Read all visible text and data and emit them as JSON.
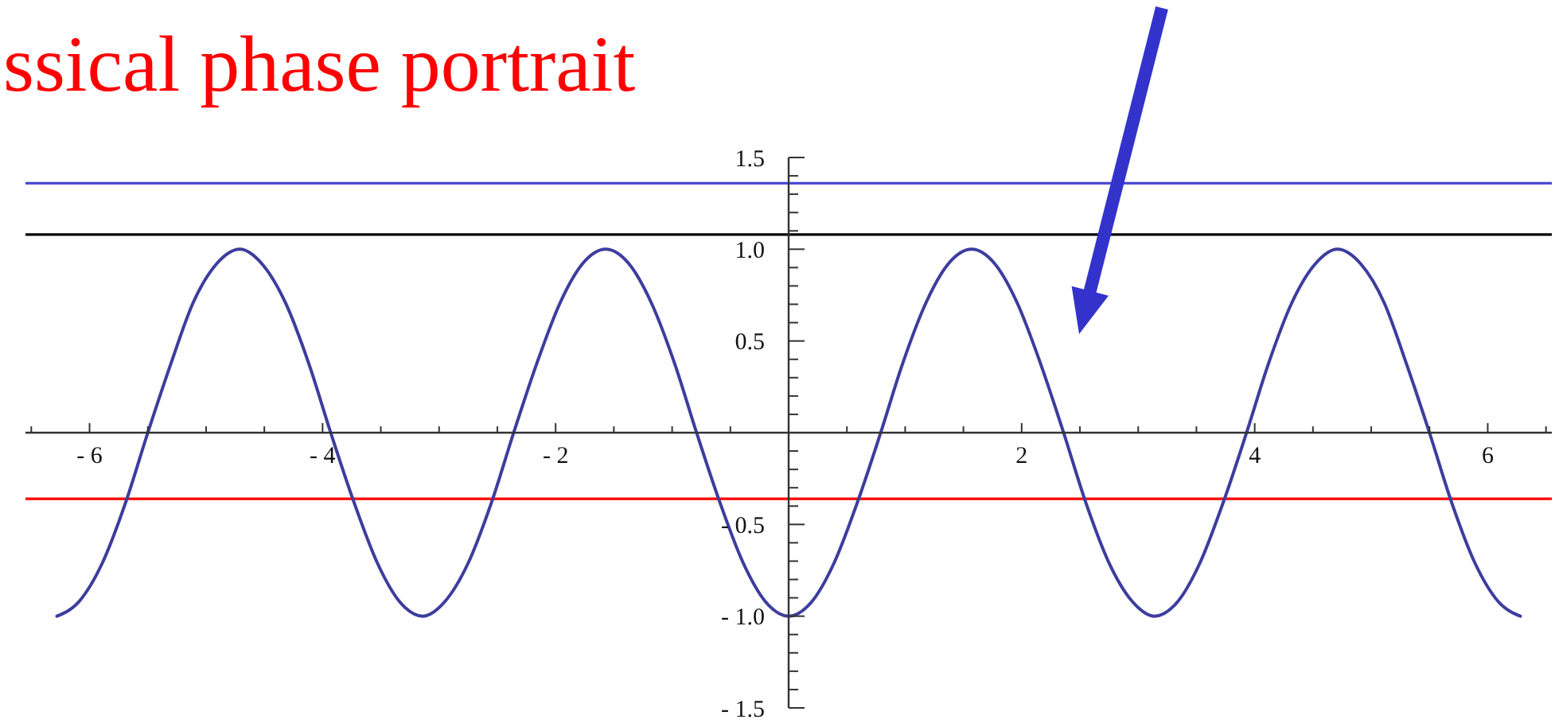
{
  "chart_data": {
    "type": "line",
    "title": "ssical phase portrait",
    "x": [
      -6.28,
      -6.09,
      -5.89,
      -5.69,
      -5.5,
      -5.3,
      -5.11,
      -4.91,
      -4.71,
      -4.52,
      -4.32,
      -4.12,
      -3.93,
      -3.73,
      -3.53,
      -3.34,
      -3.14,
      -2.95,
      -2.75,
      -2.55,
      -2.36,
      -2.16,
      -1.96,
      -1.77,
      -1.57,
      -1.37,
      -1.18,
      -0.98,
      -0.79,
      -0.59,
      -0.39,
      -0.2,
      0,
      0.2,
      0.39,
      0.59,
      0.79,
      0.98,
      1.18,
      1.37,
      1.57,
      1.77,
      1.96,
      2.16,
      2.36,
      2.55,
      2.75,
      2.95,
      3.14,
      3.34,
      3.53,
      3.73,
      3.93,
      4.12,
      4.32,
      4.52,
      4.71,
      4.91,
      5.11,
      5.3,
      5.5,
      5.69,
      5.89,
      6.09,
      6.28
    ],
    "series": [
      {
        "color": "#3d3d9e",
        "values": [
          -1,
          -0.92,
          -0.71,
          -0.38,
          0,
          0.38,
          0.71,
          0.92,
          1,
          0.92,
          0.71,
          0.38,
          0,
          -0.38,
          -0.71,
          -0.92,
          -1,
          -0.92,
          -0.71,
          -0.38,
          0,
          0.38,
          0.71,
          0.92,
          1,
          0.92,
          0.71,
          0.38,
          0,
          -0.38,
          -0.71,
          -0.92,
          -1,
          -0.92,
          -0.71,
          -0.38,
          0,
          0.38,
          0.71,
          0.92,
          1,
          0.92,
          0.71,
          0.38,
          0,
          -0.38,
          -0.71,
          -0.92,
          -1,
          -0.92,
          -0.71,
          -0.38,
          0,
          0.38,
          0.71,
          0.92,
          1,
          0.92,
          0.71,
          0.38,
          0,
          -0.38,
          -0.71,
          -0.92,
          -1
        ]
      }
    ],
    "xlim": [
      -6.55,
      6.55
    ],
    "ylim": [
      -1.5,
      1.5
    ],
    "xticks": [
      {
        "value": -6.5,
        "label": null
      },
      {
        "value": -6,
        "label": "- 6"
      },
      {
        "value": -5.5,
        "label": null
      },
      {
        "value": -5,
        "label": null
      },
      {
        "value": -4.5,
        "label": null
      },
      {
        "value": -4,
        "label": "- 4"
      },
      {
        "value": -3.5,
        "label": null
      },
      {
        "value": -3,
        "label": null
      },
      {
        "value": -2.5,
        "label": null
      },
      {
        "value": -2,
        "label": "- 2"
      },
      {
        "value": -1.5,
        "label": null
      },
      {
        "value": -1,
        "label": null
      },
      {
        "value": -0.5,
        "label": null
      },
      {
        "value": 0.5,
        "label": null
      },
      {
        "value": 1,
        "label": null
      },
      {
        "value": 1.5,
        "label": null
      },
      2,
      {
        "value": 2.5,
        "label": null
      },
      {
        "value": 3,
        "label": null
      },
      {
        "value": 3.5,
        "label": null
      },
      4,
      {
        "value": 4.5,
        "label": null
      },
      {
        "value": 5,
        "label": null
      },
      {
        "value": 5.5,
        "label": null
      },
      6,
      {
        "value": 6.5,
        "label": null
      }
    ],
    "yticks": [
      {
        "value": -1.5,
        "label": "- 1.5"
      },
      {
        "value": -1.4,
        "label": null
      },
      {
        "value": -1.3,
        "label": null
      },
      {
        "value": -1.2,
        "label": null
      },
      {
        "value": -1.1,
        "label": null
      },
      {
        "value": -1,
        "label": "- 1.0"
      },
      {
        "value": -0.9,
        "label": null
      },
      {
        "value": -0.8,
        "label": null
      },
      {
        "value": -0.7,
        "label": null
      },
      {
        "value": -0.6,
        "label": null
      },
      {
        "value": -0.5,
        "label": "- 0.5"
      },
      {
        "value": -0.4,
        "label": null
      },
      {
        "value": -0.3,
        "label": null
      },
      {
        "value": -0.2,
        "label": null
      },
      {
        "value": -0.1,
        "label": null
      },
      {
        "value": 0.1,
        "label": null
      },
      {
        "value": 0.2,
        "label": null
      },
      {
        "value": 0.3,
        "label": null
      },
      {
        "value": 0.4,
        "label": null
      },
      0.5,
      {
        "value": 0.6,
        "label": null
      },
      {
        "value": 0.7,
        "label": null
      },
      {
        "value": 0.8,
        "label": null
      },
      {
        "value": 0.9,
        "label": null
      },
      {
        "value": 1,
        "label": "1.0"
      },
      {
        "value": 1.1,
        "label": null
      },
      {
        "value": 1.2,
        "label": null
      },
      {
        "value": 1.3,
        "label": null
      },
      {
        "value": 1.4,
        "label": null
      },
      1.5
    ],
    "ref_lines": [
      {
        "axis": "y",
        "value": 1.36,
        "color": "#4a4ad4"
      },
      {
        "axis": "y",
        "value": 1.08,
        "color": "#000000"
      },
      {
        "axis": "y",
        "value": -0.36,
        "color": "#ff0000"
      }
    ],
    "line_style": "solid"
  }
}
